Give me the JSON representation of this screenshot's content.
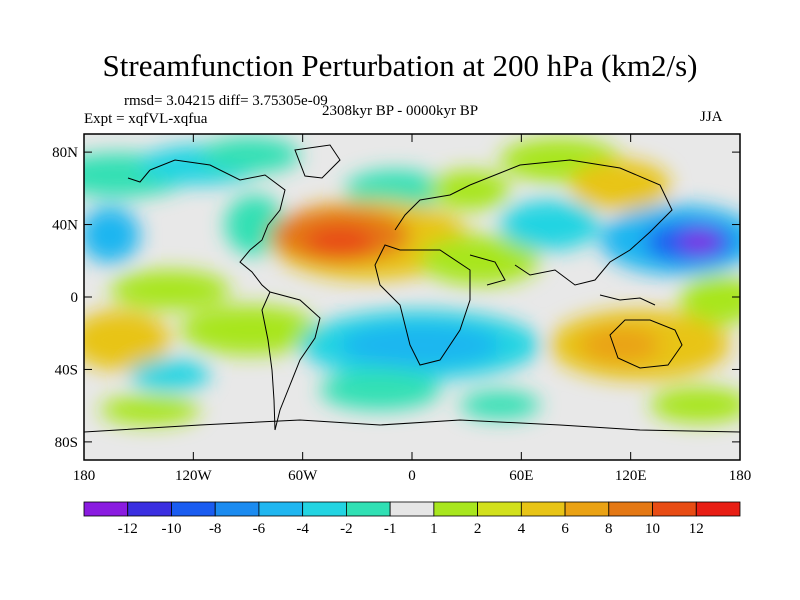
{
  "title": "Streamfunction Perturbation at 200 hPa (km2/s)",
  "stats": "rmsd= 3.04215 diff= 3.75305e-09",
  "experiment": "Expt = xqfVL-xqfua",
  "period": "2308kyr BP - 0000kyr BP",
  "season": "JJA",
  "map": {
    "lat_labels": [
      "80N",
      "40N",
      "0",
      "40S",
      "80S"
    ],
    "lon_labels": [
      "180",
      "120W",
      "60W",
      "0",
      "60E",
      "120E",
      "180"
    ],
    "lat_values": [
      80,
      40,
      0,
      -40,
      -80
    ],
    "lon_values": [
      -180,
      -120,
      -60,
      0,
      60,
      120,
      180
    ],
    "lat_range": [
      -90,
      90
    ],
    "lon_range": [
      -180,
      180
    ]
  },
  "colorbar": {
    "labels": [
      "-12",
      "-10",
      "-8",
      "-6",
      "-4",
      "-2",
      "-1",
      "1",
      "2",
      "4",
      "6",
      "8",
      "10",
      "12"
    ],
    "colors": [
      "#8a1be0",
      "#3a2ee0",
      "#1a5cf0",
      "#1b8bf0",
      "#1fb6f0",
      "#23d4e2",
      "#30e0b4",
      "#e6e6e6",
      "#a8e61e",
      "#d2e01c",
      "#e8c416",
      "#eaa214",
      "#e47814",
      "#e84c14",
      "#e81e14"
    ]
  }
}
